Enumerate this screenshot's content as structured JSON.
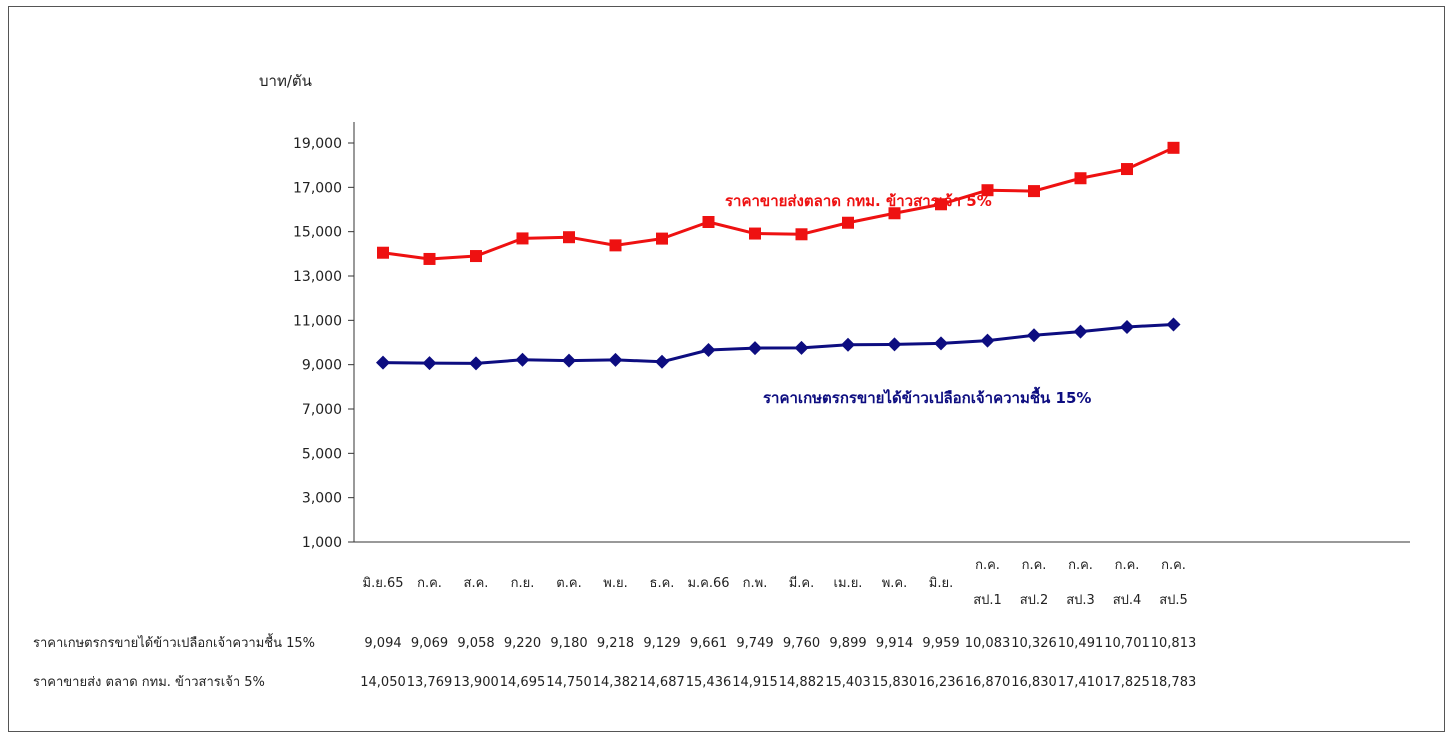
{
  "chart_data": {
    "type": "line",
    "ylabel": "บาท/ตัน",
    "ylim": [
      1000,
      19000
    ],
    "yticks": [
      "19,000",
      "17,000",
      "15,000",
      "13,000",
      "11,000",
      "9,000",
      "7,000",
      "5,000",
      "3,000",
      "1,000"
    ],
    "ytick_values": [
      19000,
      17000,
      15000,
      13000,
      11000,
      9000,
      7000,
      5000,
      3000,
      1000
    ],
    "categories": [
      [
        "มิ.ย.65"
      ],
      [
        "ก.ค."
      ],
      [
        "ส.ค."
      ],
      [
        "ก.ย."
      ],
      [
        "ต.ค."
      ],
      [
        "พ.ย."
      ],
      [
        "ธ.ค."
      ],
      [
        "ม.ค.66"
      ],
      [
        "ก.พ."
      ],
      [
        "มี.ค."
      ],
      [
        "เม.ย."
      ],
      [
        "พ.ค."
      ],
      [
        "มิ.ย."
      ],
      [
        "ก.ค.",
        "สป.1"
      ],
      [
        "ก.ค.",
        "สป.2"
      ],
      [
        "ก.ค.",
        "สป.3"
      ],
      [
        "ก.ค.",
        "สป.4"
      ],
      [
        "ก.ค.",
        "สป.5"
      ]
    ],
    "series": [
      {
        "name": "ราคาขายส่งตลาด กทม. ข้าวสารเจ้า 5%",
        "color": "#ee1111",
        "marker": "square",
        "values": [
          14050,
          13769,
          13900,
          14695,
          14750,
          14382,
          14687,
          15436,
          14915,
          14882,
          15403,
          15830,
          16236,
          16870,
          16830,
          17410,
          17825,
          18783
        ]
      },
      {
        "name": "ราคาเกษตรกรขายได้ข้าวเปลือกเจ้าความชื้น 15%",
        "color": "#0d0d80",
        "marker": "diamond",
        "values": [
          9094,
          9069,
          9058,
          9220,
          9180,
          9218,
          9129,
          9661,
          9749,
          9760,
          9899,
          9914,
          9959,
          10083,
          10326,
          10491,
          10701,
          10813
        ]
      }
    ],
    "table": {
      "rows": [
        {
          "label": "ราคาเกษตรกรขายได้ข้าวเปลือกเจ้าความชื้น 15%",
          "cells": [
            "9,094",
            "9,069",
            "9,058",
            "9,220",
            "9,180",
            "9,218",
            "9,129",
            "9,661",
            "9,749",
            "9,760",
            "9,899",
            "9,914",
            "9,959",
            "10,083",
            "10,326",
            "10,491",
            "10,701",
            "10,813"
          ]
        },
        {
          "label": "ราคาขายส่ง ตลาด กทม. ข้าวสารเจ้า 5%",
          "cells": [
            "14,050",
            "13,769",
            "13,900",
            "14,695",
            "14,750",
            "14,382",
            "14,687",
            "15,436",
            "14,915",
            "14,882",
            "15,403",
            "15,830",
            "16,236",
            "16,870",
            "16,830",
            "17,410",
            "17,825",
            "18,783"
          ]
        }
      ]
    },
    "grid": false,
    "legend": "none"
  }
}
